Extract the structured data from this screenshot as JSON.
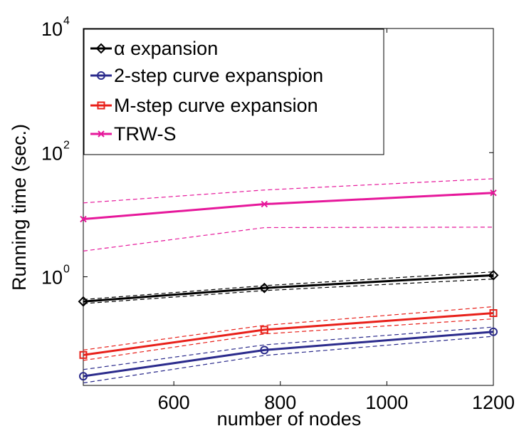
{
  "chart_data": {
    "type": "line",
    "xlabel": "number of nodes",
    "ylabel": "Running time (sec.)",
    "xlim": [
      430,
      1200
    ],
    "ylim_log10": [
      -1.75,
      4
    ],
    "y_scale": "log",
    "x_ticks": [
      600,
      800,
      1000,
      1200
    ],
    "y_ticks": [
      {
        "base": "10",
        "exp": "0",
        "value_log10": 0
      },
      {
        "base": "10",
        "exp": "2",
        "value_log10": 2
      },
      {
        "base": "10",
        "exp": "4",
        "value_log10": 4
      }
    ],
    "legend_position": "top-left",
    "series": [
      {
        "name": "α expansion",
        "color": "#000000",
        "marker": "diamond",
        "x": [
          430,
          770,
          1200
        ],
        "y": [
          0.4,
          0.66,
          1.06
        ],
        "band_upper": [
          0.43,
          0.72,
          1.2
        ],
        "band_lower": [
          0.37,
          0.6,
          0.92
        ]
      },
      {
        "name": "2-step curve expanspion",
        "color": "#2b2b8c",
        "marker": "circle",
        "x": [
          430,
          770,
          1200
        ],
        "y": [
          0.025,
          0.066,
          0.13
        ],
        "band_upper": [
          0.032,
          0.08,
          0.155
        ],
        "band_lower": [
          0.0195,
          0.054,
          0.11
        ]
      },
      {
        "name": "M-step curve expansion",
        "color": "#e8201a",
        "marker": "square",
        "x": [
          430,
          770,
          1200
        ],
        "y": [
          0.055,
          0.14,
          0.26
        ],
        "band_upper": [
          0.066,
          0.165,
          0.33
        ],
        "band_lower": [
          0.045,
          0.12,
          0.21
        ]
      },
      {
        "name": "TRW-S",
        "color": "#e6189b",
        "marker": "x",
        "x": [
          430,
          770,
          1200
        ],
        "y": [
          8.5,
          14.8,
          22.5
        ],
        "band_upper": [
          15.5,
          25,
          38
        ],
        "band_lower": [
          2.6,
          6.2,
          6.3
        ]
      }
    ]
  }
}
